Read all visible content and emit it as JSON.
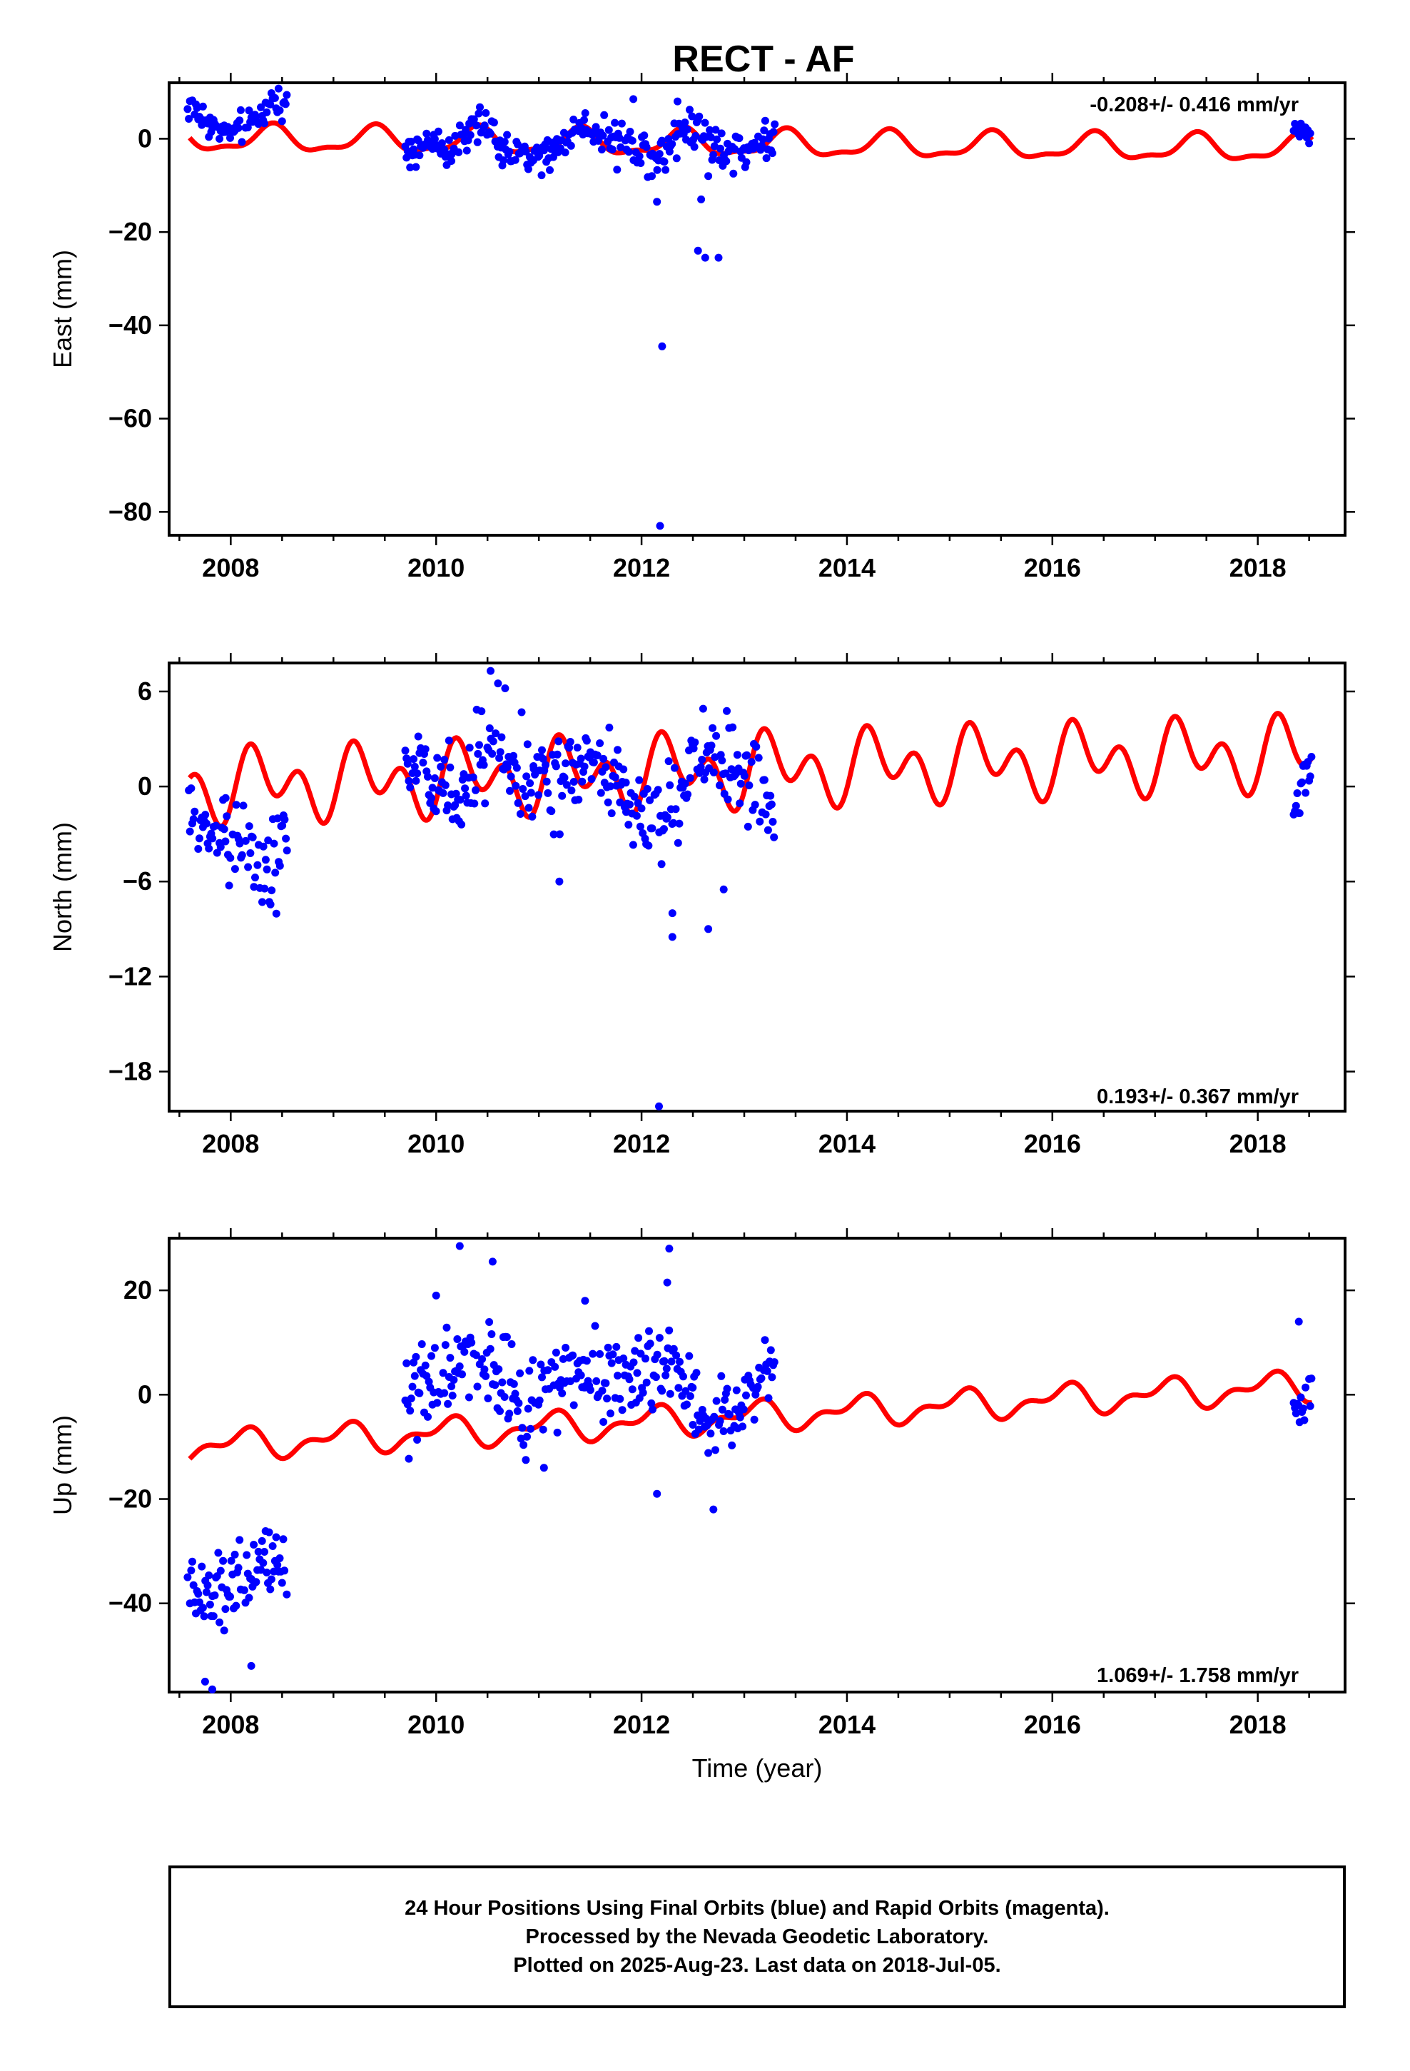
{
  "title": "RECT - AF",
  "xlabel": "Time (year)",
  "colors": {
    "final_orbits": "#0000ff",
    "model": "#ff0000",
    "frame": "#000000"
  },
  "footer": {
    "line1": "24 Hour Positions Using Final Orbits (blue) and Rapid Orbits (magenta).",
    "line2": "Processed by the Nevada Geodetic Laboratory.",
    "line3": "Plotted on 2025-Aug-23. Last data on 2018-Jul-05."
  },
  "chart_data": [
    {
      "type": "scatter",
      "component": "East",
      "ylabel": "East (mm)",
      "velocity": "-0.208+/- 0.416 mm/yr",
      "velocity_position": "top-right",
      "xlim": [
        2007.4,
        2018.85
      ],
      "ylim": [
        -85,
        12
      ],
      "xticks": [
        2008,
        2010,
        2012,
        2014,
        2016,
        2018
      ],
      "yticks": [
        0,
        -20,
        -40,
        -60,
        -80
      ],
      "model": {
        "offset": 0.0,
        "trend": -0.208,
        "t0": 2007.6,
        "annual_amp": 2.6,
        "annual_phase": 0.15,
        "semi_amp": 1.0,
        "semi_phase": 0.3
      },
      "segments": [
        {
          "start": 2007.58,
          "end": 2008.55,
          "knots": [
            [
              2007.58,
              7
            ],
            [
              2007.8,
              3
            ],
            [
              2008.0,
              1
            ],
            [
              2008.2,
              3
            ],
            [
              2008.4,
              8
            ],
            [
              2008.55,
              8
            ]
          ],
          "spread": 1.6
        },
        {
          "start": 2009.7,
          "end": 2010.15,
          "knots": [
            [
              2009.7,
              -2
            ],
            [
              2009.95,
              -1
            ],
            [
              2010.15,
              -3
            ]
          ],
          "spread": 1.6
        },
        {
          "start": 2010.15,
          "end": 2010.9,
          "knots": [
            [
              2010.15,
              -1
            ],
            [
              2010.45,
              3
            ],
            [
              2010.7,
              -3
            ],
            [
              2010.9,
              -4
            ]
          ],
          "spread": 2.0
        },
        {
          "start": 2010.9,
          "end": 2011.75,
          "knots": [
            [
              2010.9,
              -4
            ],
            [
              2011.15,
              -3
            ],
            [
              2011.4,
              3
            ],
            [
              2011.75,
              0
            ]
          ],
          "spread": 1.8
        },
        {
          "start": 2011.75,
          "end": 2012.25,
          "knots": [
            [
              2011.75,
              -1
            ],
            [
              2012.0,
              -2
            ],
            [
              2012.25,
              -3
            ]
          ],
          "spread": 2.5
        },
        {
          "start": 2012.25,
          "end": 2013.3,
          "knots": [
            [
              2012.25,
              0
            ],
            [
              2012.5,
              3
            ],
            [
              2012.8,
              -2
            ],
            [
              2013.0,
              -3
            ],
            [
              2013.3,
              1
            ]
          ],
          "spread": 2.2
        },
        {
          "start": 2018.35,
          "end": 2018.52,
          "knots": [
            [
              2018.35,
              2
            ],
            [
              2018.52,
              1
            ]
          ],
          "spread": 1.2
        }
      ],
      "outliers": [
        [
          2012.18,
          -83
        ],
        [
          2012.2,
          -44.5
        ],
        [
          2012.55,
          -24
        ],
        [
          2012.62,
          -25.5
        ],
        [
          2012.75,
          -25.5
        ],
        [
          2012.15,
          -13.5
        ],
        [
          2012.58,
          -13
        ],
        [
          2012.65,
          -8
        ],
        [
          2012.1,
          -8
        ],
        [
          2011.92,
          8.5
        ],
        [
          2012.35,
          8
        ]
      ]
    },
    {
      "type": "scatter",
      "component": "North",
      "ylabel": "North (mm)",
      "velocity": "0.193+/- 0.367 mm/yr",
      "velocity_position": "bottom-right",
      "xlim": [
        2007.4,
        2018.85
      ],
      "ylim": [
        -20.5,
        7.8
      ],
      "xticks": [
        2008,
        2010,
        2012,
        2014,
        2016,
        2018
      ],
      "yticks": [
        6,
        0,
        -6,
        -12,
        -18
      ],
      "model": {
        "offset": 0.0,
        "trend": 0.193,
        "t0": 2007.6,
        "annual_amp": 1.3,
        "annual_phase": 0.05,
        "semi_amp": 1.6,
        "semi_phase": 0.55
      },
      "segments": [
        {
          "start": 2007.58,
          "end": 2007.95,
          "knots": [
            [
              2007.58,
              -1.5
            ],
            [
              2007.75,
              -2.5
            ],
            [
              2007.95,
              -3
            ]
          ],
          "spread": 1.0
        },
        {
          "start": 2007.95,
          "end": 2008.55,
          "knots": [
            [
              2007.95,
              -2.5
            ],
            [
              2008.2,
              -4.5
            ],
            [
              2008.35,
              -6
            ],
            [
              2008.55,
              -3
            ]
          ],
          "spread": 1.4
        },
        {
          "start": 2009.7,
          "end": 2010.2,
          "knots": [
            [
              2009.7,
              2
            ],
            [
              2009.95,
              0.5
            ],
            [
              2010.2,
              0
            ]
          ],
          "spread": 1.2
        },
        {
          "start": 2010.2,
          "end": 2010.95,
          "knots": [
            [
              2010.2,
              -2
            ],
            [
              2010.45,
              2
            ],
            [
              2010.6,
              3
            ],
            [
              2010.95,
              0
            ]
          ],
          "spread": 1.6
        },
        {
          "start": 2010.95,
          "end": 2011.85,
          "knots": [
            [
              2010.95,
              1
            ],
            [
              2011.2,
              0
            ],
            [
              2011.5,
              2
            ],
            [
              2011.85,
              0
            ]
          ],
          "spread": 1.4
        },
        {
          "start": 2011.85,
          "end": 2012.45,
          "knots": [
            [
              2011.85,
              -1
            ],
            [
              2012.15,
              -2
            ],
            [
              2012.45,
              -1
            ]
          ],
          "spread": 1.4
        },
        {
          "start": 2012.45,
          "end": 2013.3,
          "knots": [
            [
              2012.45,
              1
            ],
            [
              2012.65,
              2
            ],
            [
              2012.95,
              1
            ],
            [
              2013.15,
              -1
            ],
            [
              2013.3,
              -3
            ]
          ],
          "spread": 1.3
        },
        {
          "start": 2018.35,
          "end": 2018.53,
          "knots": [
            [
              2018.35,
              -1
            ],
            [
              2018.53,
              1.5
            ]
          ],
          "spread": 0.9
        }
      ],
      "outliers": [
        [
          2012.17,
          -20.2
        ],
        [
          2012.3,
          -9.5
        ],
        [
          2012.65,
          -9
        ],
        [
          2012.3,
          -8
        ],
        [
          2012.8,
          -6.5
        ],
        [
          2011.2,
          -6
        ],
        [
          2010.53,
          7.3
        ]
      ]
    },
    {
      "type": "scatter",
      "component": "Up",
      "ylabel": "Up (mm)",
      "velocity": "1.069+/- 1.758 mm/yr",
      "velocity_position": "bottom-right",
      "xlim": [
        2007.4,
        2018.85
      ],
      "ylim": [
        -57,
        30
      ],
      "xticks": [
        2008,
        2010,
        2012,
        2014,
        2016,
        2018
      ],
      "yticks": [
        20,
        0,
        -20,
        -40
      ],
      "model": {
        "offset": -10.0,
        "trend": 1.069,
        "t0": 2007.6,
        "annual_amp": 2.3,
        "annual_phase": 0.85,
        "semi_amp": 1.4,
        "semi_phase": 0.1
      },
      "segments": [
        {
          "start": 2007.58,
          "end": 2008.55,
          "knots": [
            [
              2007.58,
              -37
            ],
            [
              2007.8,
              -40
            ],
            [
              2008.0,
              -35
            ],
            [
              2008.3,
              -32
            ],
            [
              2008.55,
              -36
            ]
          ],
          "spread": 3.5
        },
        {
          "start": 2009.7,
          "end": 2010.95,
          "knots": [
            [
              2009.7,
              -3
            ],
            [
              2010.0,
              3
            ],
            [
              2010.3,
              8
            ],
            [
              2010.55,
              5
            ],
            [
              2010.95,
              -3
            ]
          ],
          "spread": 4.2
        },
        {
          "start": 2010.95,
          "end": 2011.9,
          "knots": [
            [
              2010.95,
              -2
            ],
            [
              2011.3,
              5
            ],
            [
              2011.6,
              4
            ],
            [
              2011.9,
              2
            ]
          ],
          "spread": 4.0
        },
        {
          "start": 2011.9,
          "end": 2012.5,
          "knots": [
            [
              2011.9,
              2
            ],
            [
              2012.2,
              7
            ],
            [
              2012.5,
              3
            ]
          ],
          "spread": 4.5
        },
        {
          "start": 2012.5,
          "end": 2013.3,
          "knots": [
            [
              2012.5,
              -2
            ],
            [
              2012.75,
              -5
            ],
            [
              2013.0,
              0
            ],
            [
              2013.3,
              7
            ]
          ],
          "spread": 4.0
        },
        {
          "start": 2018.35,
          "end": 2018.53,
          "knots": [
            [
              2018.35,
              0
            ],
            [
              2018.53,
              0
            ]
          ],
          "spread": 3.0
        }
      ],
      "outliers": [
        [
          2010.23,
          28.5
        ],
        [
          2010.55,
          25.5
        ],
        [
          2012.27,
          28
        ],
        [
          2012.25,
          21.5
        ],
        [
          2012.7,
          -22
        ],
        [
          2012.15,
          -19
        ],
        [
          2008.2,
          -52
        ],
        [
          2007.75,
          -55
        ],
        [
          2007.82,
          -56.5
        ],
        [
          2010.0,
          19
        ],
        [
          2011.45,
          18
        ],
        [
          2018.4,
          14
        ],
        [
          2011.05,
          -14
        ]
      ]
    }
  ]
}
